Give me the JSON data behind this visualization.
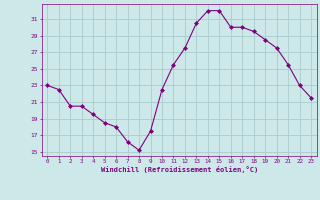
{
  "x": [
    0,
    1,
    2,
    3,
    4,
    5,
    6,
    7,
    8,
    9,
    10,
    11,
    12,
    13,
    14,
    15,
    16,
    17,
    18,
    19,
    20,
    21,
    22,
    23
  ],
  "y": [
    23,
    22.5,
    20.5,
    20.5,
    19.5,
    18.5,
    18,
    16.2,
    15.2,
    17.5,
    22.5,
    25.5,
    27.5,
    30.5,
    32,
    32,
    30,
    30,
    29.5,
    28.5,
    27.5,
    25.5,
    23,
    21.5
  ],
  "line_color": "#800080",
  "marker": "D",
  "marker_size": 2,
  "bg_color": "#cce8e8",
  "grid_color": "#aacccc",
  "xlabel": "Windchill (Refroidissement éolien,°C)",
  "xlabel_color": "#800080",
  "tick_color": "#800080",
  "yticks": [
    15,
    17,
    19,
    21,
    23,
    25,
    27,
    29,
    31
  ],
  "xticks": [
    0,
    1,
    2,
    3,
    4,
    5,
    6,
    7,
    8,
    9,
    10,
    11,
    12,
    13,
    14,
    15,
    16,
    17,
    18,
    19,
    20,
    21,
    22,
    23
  ],
  "ylim": [
    14.5,
    32.8
  ],
  "xlim": [
    -0.5,
    23.5
  ]
}
